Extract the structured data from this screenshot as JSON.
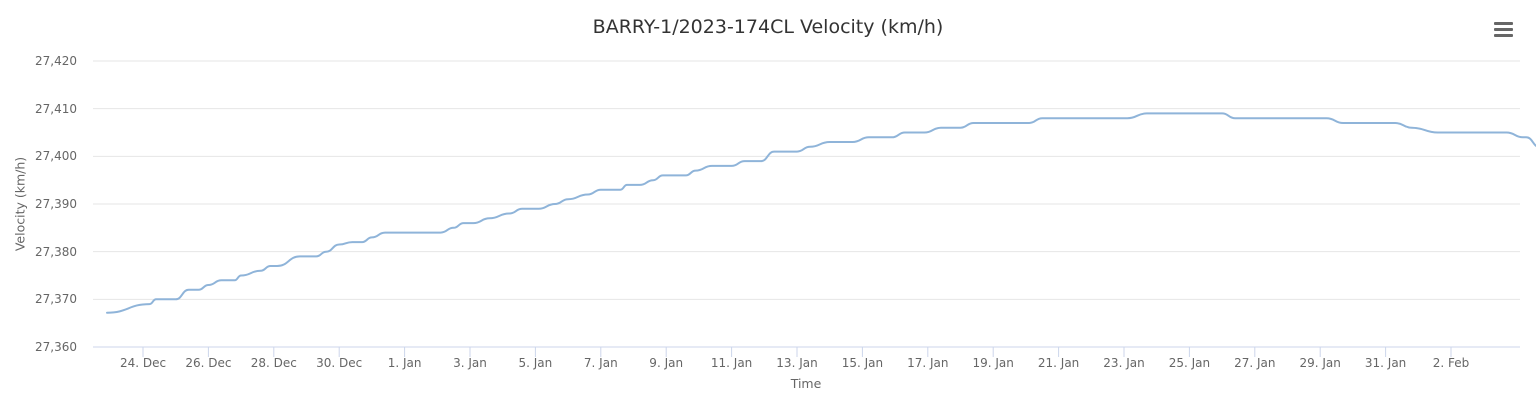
{
  "title": "BARRY-1/2023-174CL Velocity (km/h)",
  "menu": {
    "icon": "hamburger-menu-icon"
  },
  "colors": {
    "line": "#8fb4d9",
    "grid": "#e6e6e6",
    "axis": "#ccd6eb",
    "text": "#666666",
    "title": "#333333"
  },
  "chart_data": {
    "type": "line",
    "title": "BARRY-1/2023-174CL Velocity (km/h)",
    "xlabel": "Time",
    "ylabel": "Velocity (km/h)",
    "ylim": [
      27360,
      27420
    ],
    "yticks": [
      "27,360",
      "27,370",
      "27,380",
      "27,390",
      "27,400",
      "27,410",
      "27,420"
    ],
    "xticks": [
      "24. Dec",
      "26. Dec",
      "28. Dec",
      "30. Dec",
      "1. Jan",
      "3. Jan",
      "5. Jan",
      "7. Jan",
      "9. Jan",
      "11. Jan",
      "13. Jan",
      "15. Jan",
      "17. Jan",
      "19. Jan",
      "21. Jan",
      "23. Jan",
      "25. Jan",
      "27. Jan",
      "29. Jan",
      "31. Jan",
      "2. Feb"
    ],
    "grid": true,
    "legend": false,
    "series": [
      {
        "name": "Velocity",
        "x": [
          "22.9 Dec",
          "24.2 Dec",
          "24.4 Dec",
          "25.0 Dec",
          "25.4 Dec",
          "25.7 Dec",
          "26.0 Dec",
          "26.4 Dec",
          "26.8 Dec",
          "27.0 Dec",
          "27.6 Dec",
          "27.9 Dec",
          "28.1 Dec",
          "28.8 Dec",
          "29.3 Dec",
          "29.6 Dec",
          "30.0 Dec",
          "30.4 Dec",
          "30.7 Dec",
          "31.0 Dec",
          "31.4 Dec",
          "1.1 Jan",
          "1.5 Jan",
          "1.8 Jan",
          "2.1 Jan",
          "2.6 Jan",
          "3.2 Jan",
          "3.6 Jan",
          "4.1 Jan",
          "4.6 Jan",
          "5.0 Jan",
          "5.6 Jan",
          "6.0 Jan",
          "6.6 Jan",
          "6.8 Jan",
          "7.2 Jan",
          "7.6 Jan",
          "7.9 Jan",
          "8.6 Jan",
          "8.9 Jan",
          "9.4 Jan",
          "10.0 Jan",
          "10.4 Jan",
          "10.9 Jan",
          "11.3 Jan",
          "12.0 Jan",
          "12.4 Jan",
          "13.0 Jan",
          "13.7 Jan",
          "14.2 Jan",
          "14.9 Jan",
          "15.3 Jan",
          "15.9 Jan",
          "16.4 Jan",
          "17.0 Jan",
          "17.4 Jan",
          "19.1 Jan",
          "19.5 Jan",
          "22.1 Jan",
          "22.7 Jan",
          "25.0 Jan",
          "25.4 Jan",
          "28.2 Jan",
          "28.7 Jan",
          "30.3 Jan",
          "30.8 Jan",
          "31.6 Jan",
          "2.7 Feb",
          "3.2 Feb",
          "3.3 Feb",
          "3.7 Feb"
        ],
        "values": [
          27367.2,
          27369,
          27370,
          27370,
          27372,
          27372,
          27373,
          27374,
          27374,
          27375,
          27376,
          27377,
          27377,
          27379,
          27379,
          27380,
          27381.5,
          27382,
          27382,
          27383,
          27384,
          27384,
          27385,
          27386,
          27386,
          27387,
          27388,
          27389,
          27389,
          27390,
          27391,
          27392,
          27393,
          27393,
          27394,
          27394,
          27395,
          27396,
          27396,
          27397,
          27398,
          27398,
          27399,
          27399,
          27401,
          27401,
          27402,
          27403,
          27403,
          27404,
          27404,
          27405,
          27405,
          27406,
          27406,
          27407,
          27407,
          27408,
          27408,
          27409,
          27409,
          27408,
          27408,
          27407,
          27407,
          27406,
          27405,
          27405,
          27404,
          27404,
          27402
        ]
      }
    ]
  }
}
